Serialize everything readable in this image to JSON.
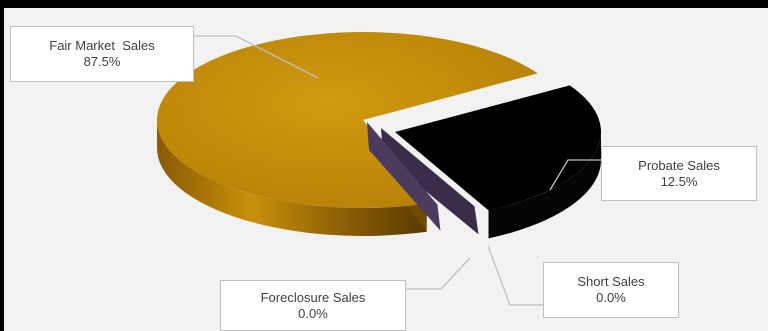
{
  "chart_data": {
    "type": "pie",
    "style": "3d-exploded",
    "categories": [
      "Fair Market  Sales",
      "Probate Sales",
      "Short Sales",
      "Foreclosure Sales"
    ],
    "values": [
      87.5,
      12.5,
      0.0,
      0.0
    ],
    "labels": [
      "87.5%",
      "12.5%",
      "0.0%",
      "0.0%"
    ],
    "colors": [
      "#c8900a",
      "#000000",
      "#3a2d4a",
      "#4b3b5c"
    ],
    "title": "",
    "legend": "none"
  },
  "labels": {
    "fair_market": {
      "name": "Fair Market  Sales",
      "pct": "87.5%"
    },
    "probate": {
      "name": "Probate Sales",
      "pct": "12.5%"
    },
    "short": {
      "name": "Short Sales",
      "pct": "0.0%"
    },
    "foreclosure": {
      "name": "Foreclosure Sales",
      "pct": "0.0%"
    }
  }
}
